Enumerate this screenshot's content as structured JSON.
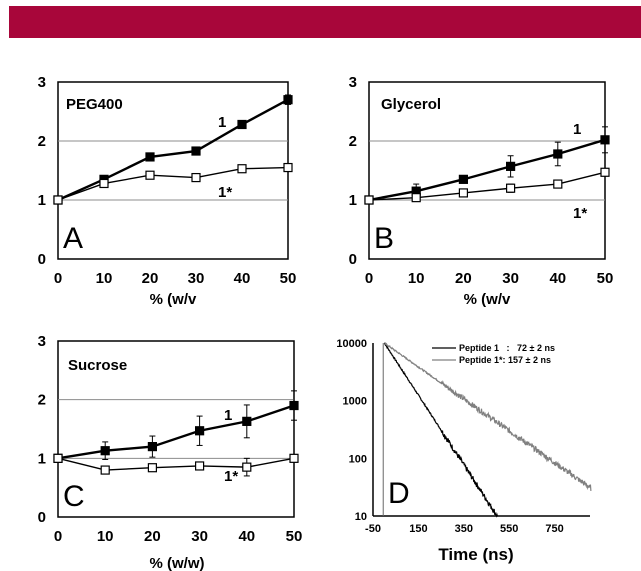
{
  "header": {
    "bar_color": "#a8063a"
  },
  "chart_data": [
    {
      "panel": "A",
      "type": "line",
      "title": "PEG400",
      "xlabel": "% (w/v",
      "x": [
        0,
        10,
        20,
        30,
        40,
        50
      ],
      "xticks": [
        "0",
        "10",
        "20",
        "30",
        "40",
        "50"
      ],
      "yticks": [
        "0",
        "1",
        "2",
        "3"
      ],
      "xlim": [
        0,
        50
      ],
      "ylim": [
        0,
        3
      ],
      "gridlines_y": [
        1,
        2
      ],
      "series": [
        {
          "name": "1",
          "marker": "filled-square",
          "values": [
            1.0,
            1.35,
            1.73,
            1.83,
            2.28,
            2.7
          ],
          "err": [
            0,
            0.04,
            0.04,
            0.04,
            0.05,
            0.08
          ]
        },
        {
          "name": "1*",
          "marker": "open-square",
          "values": [
            1.0,
            1.28,
            1.42,
            1.38,
            1.53,
            1.55
          ],
          "err": [
            0,
            0.04,
            0.04,
            0.04,
            0.04,
            0.05
          ]
        }
      ]
    },
    {
      "panel": "B",
      "type": "line",
      "title": "Glycerol",
      "xlabel": "% (w/v",
      "x": [
        0,
        10,
        20,
        30,
        40,
        50
      ],
      "xticks": [
        "0",
        "10",
        "20",
        "30",
        "40",
        "50"
      ],
      "yticks": [
        "0",
        "1",
        "2",
        "3"
      ],
      "xlim": [
        0,
        50
      ],
      "ylim": [
        0,
        3
      ],
      "gridlines_y": [
        1,
        2
      ],
      "series": [
        {
          "name": "1",
          "marker": "filled-square",
          "values": [
            1.0,
            1.15,
            1.35,
            1.57,
            1.78,
            2.02
          ],
          "err": [
            0,
            0.12,
            0.06,
            0.18,
            0.2,
            0.22
          ]
        },
        {
          "name": "1*",
          "marker": "open-square",
          "values": [
            1.0,
            1.04,
            1.12,
            1.2,
            1.27,
            1.47
          ],
          "err": [
            0,
            0.04,
            0.05,
            0.07,
            0.05,
            0.06
          ]
        }
      ]
    },
    {
      "panel": "C",
      "type": "line",
      "title": "Sucrose",
      "xlabel": "% (w/w)",
      "x": [
        0,
        10,
        20,
        30,
        40,
        50
      ],
      "xticks": [
        "0",
        "10",
        "20",
        "30",
        "40",
        "50"
      ],
      "yticks": [
        "0",
        "1",
        "2",
        "3"
      ],
      "xlim": [
        0,
        50
      ],
      "ylim": [
        0,
        3
      ],
      "gridlines_y": [
        1,
        2
      ],
      "series": [
        {
          "name": "1",
          "marker": "filled-square",
          "values": [
            1.0,
            1.13,
            1.2,
            1.47,
            1.63,
            1.9
          ],
          "err": [
            0,
            0.15,
            0.18,
            0.25,
            0.28,
            0.25
          ]
        },
        {
          "name": "1*",
          "marker": "open-square",
          "values": [
            1.0,
            0.8,
            0.84,
            0.87,
            0.85,
            1.0
          ],
          "err": [
            0,
            0.06,
            0.06,
            0.05,
            0.15,
            0.06
          ]
        }
      ]
    },
    {
      "panel": "D",
      "type": "line",
      "xlabel": "Time (ns)",
      "yscale": "log",
      "xlim": [
        -50,
        950
      ],
      "ylim": [
        10,
        10000
      ],
      "xticks": [
        "-50",
        "150",
        "350",
        "550",
        "750"
      ],
      "yticks": [
        "10",
        "100",
        "1000",
        "10000"
      ],
      "series": [
        {
          "name": "Peptide 1   :   72 ± 2 ns",
          "color": "#000000",
          "t_start": 0,
          "t_end": 500,
          "peak": 10000,
          "tau": 72,
          "floor": 0
        },
        {
          "name": "Peptide 1*: 157 ± 2 ns",
          "color": "#808080",
          "t_start": 0,
          "t_end": 910,
          "peak": 10000,
          "tau": 157,
          "floor": 0
        }
      ],
      "irf_t": -5
    }
  ]
}
